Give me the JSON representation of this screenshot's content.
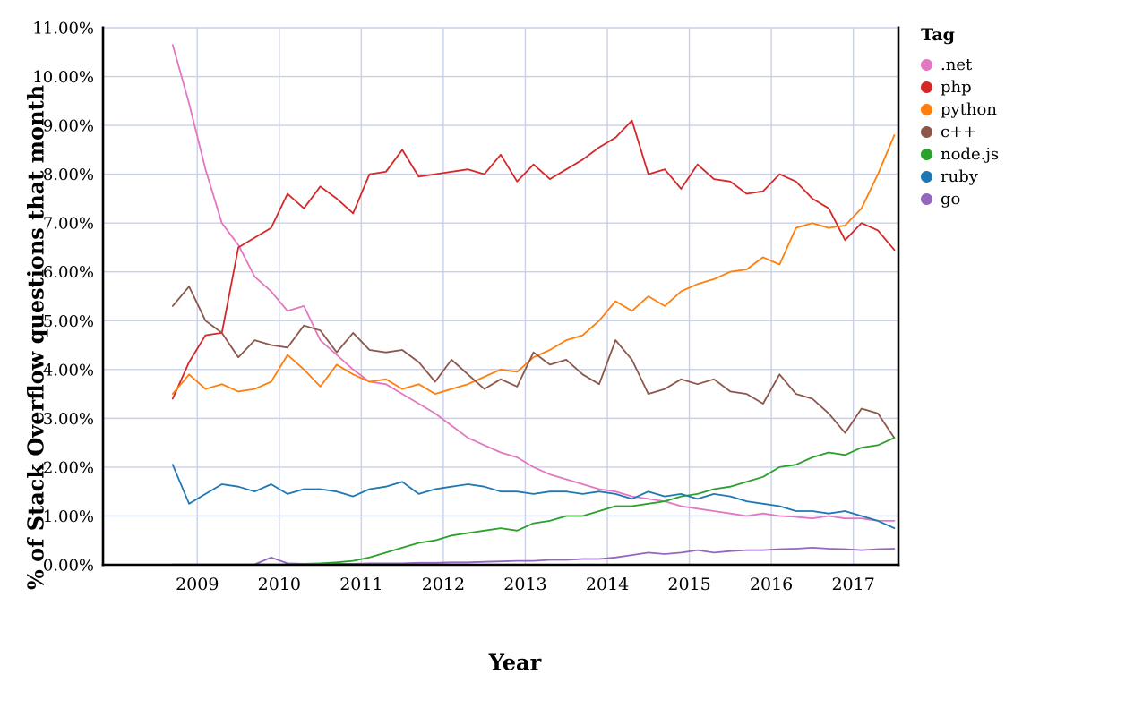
{
  "style": {
    "background": "#ffffff",
    "grid_color": "#c9d0e8",
    "axis_color": "#000000",
    "text_color": "#000000"
  },
  "chart_data": {
    "type": "line",
    "xlabel": "Year",
    "ylabel": "% of Stack Overflow questions that month",
    "legend_title": "Tag",
    "legend_position": "right-outside",
    "grid": true,
    "xlim": [
      2007.85,
      2017.55
    ],
    "ylim": [
      0,
      11
    ],
    "x_ticks": [
      2009,
      2010,
      2011,
      2012,
      2013,
      2014,
      2015,
      2016,
      2017
    ],
    "y_ticks": [
      0,
      1,
      2,
      3,
      4,
      5,
      6,
      7,
      8,
      9,
      10,
      11
    ],
    "y_tick_labels": [
      "0.00%",
      "1.00%",
      "2.00%",
      "3.00%",
      "4.00%",
      "5.00%",
      "6.00%",
      "7.00%",
      "8.00%",
      "9.00%",
      "10.00%",
      "11.00%"
    ],
    "x": [
      2008.7,
      2008.9,
      2009.1,
      2009.3,
      2009.5,
      2009.7,
      2009.9,
      2010.1,
      2010.3,
      2010.5,
      2010.7,
      2010.9,
      2011.1,
      2011.3,
      2011.5,
      2011.7,
      2011.9,
      2012.1,
      2012.3,
      2012.5,
      2012.7,
      2012.9,
      2013.1,
      2013.3,
      2013.5,
      2013.7,
      2013.9,
      2014.1,
      2014.3,
      2014.5,
      2014.7,
      2014.9,
      2015.1,
      2015.3,
      2015.5,
      2015.7,
      2015.9,
      2016.1,
      2016.3,
      2016.5,
      2016.7,
      2016.9,
      2017.1,
      2017.3,
      2017.5
    ],
    "series": [
      {
        "name": ".net",
        "color": "#e377c2",
        "values": [
          10.65,
          9.45,
          8.1,
          7.0,
          6.55,
          5.9,
          5.6,
          5.2,
          5.3,
          4.6,
          4.3,
          4.0,
          3.75,
          3.7,
          3.5,
          3.3,
          3.1,
          2.85,
          2.6,
          2.45,
          2.3,
          2.2,
          2.0,
          1.85,
          1.75,
          1.65,
          1.55,
          1.5,
          1.4,
          1.35,
          1.3,
          1.2,
          1.15,
          1.1,
          1.05,
          1.0,
          1.05,
          1.0,
          0.98,
          0.95,
          1.0,
          0.95,
          0.95,
          0.9,
          0.9
        ]
      },
      {
        "name": "php",
        "color": "#d62728",
        "values": [
          3.4,
          4.15,
          4.7,
          4.75,
          6.5,
          6.7,
          6.9,
          7.6,
          7.3,
          7.75,
          7.5,
          7.2,
          8.0,
          8.05,
          8.5,
          7.95,
          8.0,
          8.05,
          8.1,
          8.0,
          8.4,
          7.85,
          8.2,
          7.9,
          8.1,
          8.3,
          8.55,
          8.75,
          9.1,
          8.0,
          8.1,
          7.7,
          8.2,
          7.9,
          7.85,
          7.6,
          7.65,
          8.0,
          7.85,
          7.5,
          7.3,
          6.65,
          7.0,
          6.85,
          6.45
        ]
      },
      {
        "name": "python",
        "color": "#ff7f0e",
        "values": [
          3.5,
          3.9,
          3.6,
          3.7,
          3.55,
          3.6,
          3.75,
          4.3,
          4.0,
          3.65,
          4.1,
          3.9,
          3.75,
          3.8,
          3.6,
          3.7,
          3.5,
          3.6,
          3.7,
          3.85,
          4.0,
          3.95,
          4.25,
          4.4,
          4.6,
          4.7,
          5.0,
          5.4,
          5.2,
          5.5,
          5.3,
          5.6,
          5.75,
          5.85,
          6.0,
          6.05,
          6.3,
          6.15,
          6.9,
          7.0,
          6.9,
          6.95,
          7.3,
          8.0,
          8.8
        ]
      },
      {
        "name": "c++",
        "color": "#8c564b",
        "values": [
          5.3,
          5.7,
          5.0,
          4.75,
          4.25,
          4.6,
          4.5,
          4.45,
          4.9,
          4.8,
          4.35,
          4.75,
          4.4,
          4.35,
          4.4,
          4.15,
          3.75,
          4.2,
          3.9,
          3.6,
          3.8,
          3.65,
          4.35,
          4.1,
          4.2,
          3.9,
          3.7,
          4.6,
          4.2,
          3.5,
          3.6,
          3.8,
          3.7,
          3.8,
          3.55,
          3.5,
          3.3,
          3.9,
          3.5,
          3.4,
          3.1,
          2.7,
          3.2,
          3.1,
          2.6
        ]
      },
      {
        "name": "node.js",
        "color": "#2ca02c",
        "values": [
          0.0,
          0.0,
          0.0,
          0.0,
          0.0,
          0.01,
          0.01,
          0.01,
          0.02,
          0.03,
          0.05,
          0.08,
          0.15,
          0.25,
          0.35,
          0.45,
          0.5,
          0.6,
          0.65,
          0.7,
          0.75,
          0.7,
          0.85,
          0.9,
          1.0,
          1.0,
          1.1,
          1.2,
          1.2,
          1.25,
          1.3,
          1.4,
          1.45,
          1.55,
          1.6,
          1.7,
          1.8,
          2.0,
          2.05,
          2.2,
          2.3,
          2.25,
          2.4,
          2.45,
          2.6
        ]
      },
      {
        "name": "ruby",
        "color": "#1f77b4",
        "values": [
          2.05,
          1.25,
          1.45,
          1.65,
          1.6,
          1.5,
          1.65,
          1.45,
          1.55,
          1.55,
          1.5,
          1.4,
          1.55,
          1.6,
          1.7,
          1.45,
          1.55,
          1.6,
          1.65,
          1.6,
          1.5,
          1.5,
          1.45,
          1.5,
          1.5,
          1.45,
          1.5,
          1.45,
          1.35,
          1.5,
          1.4,
          1.45,
          1.35,
          1.45,
          1.4,
          1.3,
          1.25,
          1.2,
          1.1,
          1.1,
          1.05,
          1.1,
          1.0,
          0.9,
          0.75
        ]
      },
      {
        "name": "go",
        "color": "#9467bd",
        "values": [
          0.01,
          0.01,
          0.01,
          0.01,
          0.01,
          0.01,
          0.15,
          0.03,
          0.02,
          0.02,
          0.02,
          0.02,
          0.03,
          0.03,
          0.03,
          0.04,
          0.04,
          0.05,
          0.05,
          0.06,
          0.07,
          0.08,
          0.08,
          0.1,
          0.1,
          0.12,
          0.12,
          0.15,
          0.2,
          0.25,
          0.22,
          0.25,
          0.3,
          0.25,
          0.28,
          0.3,
          0.3,
          0.32,
          0.33,
          0.35,
          0.33,
          0.32,
          0.3,
          0.32,
          0.33
        ]
      }
    ]
  }
}
